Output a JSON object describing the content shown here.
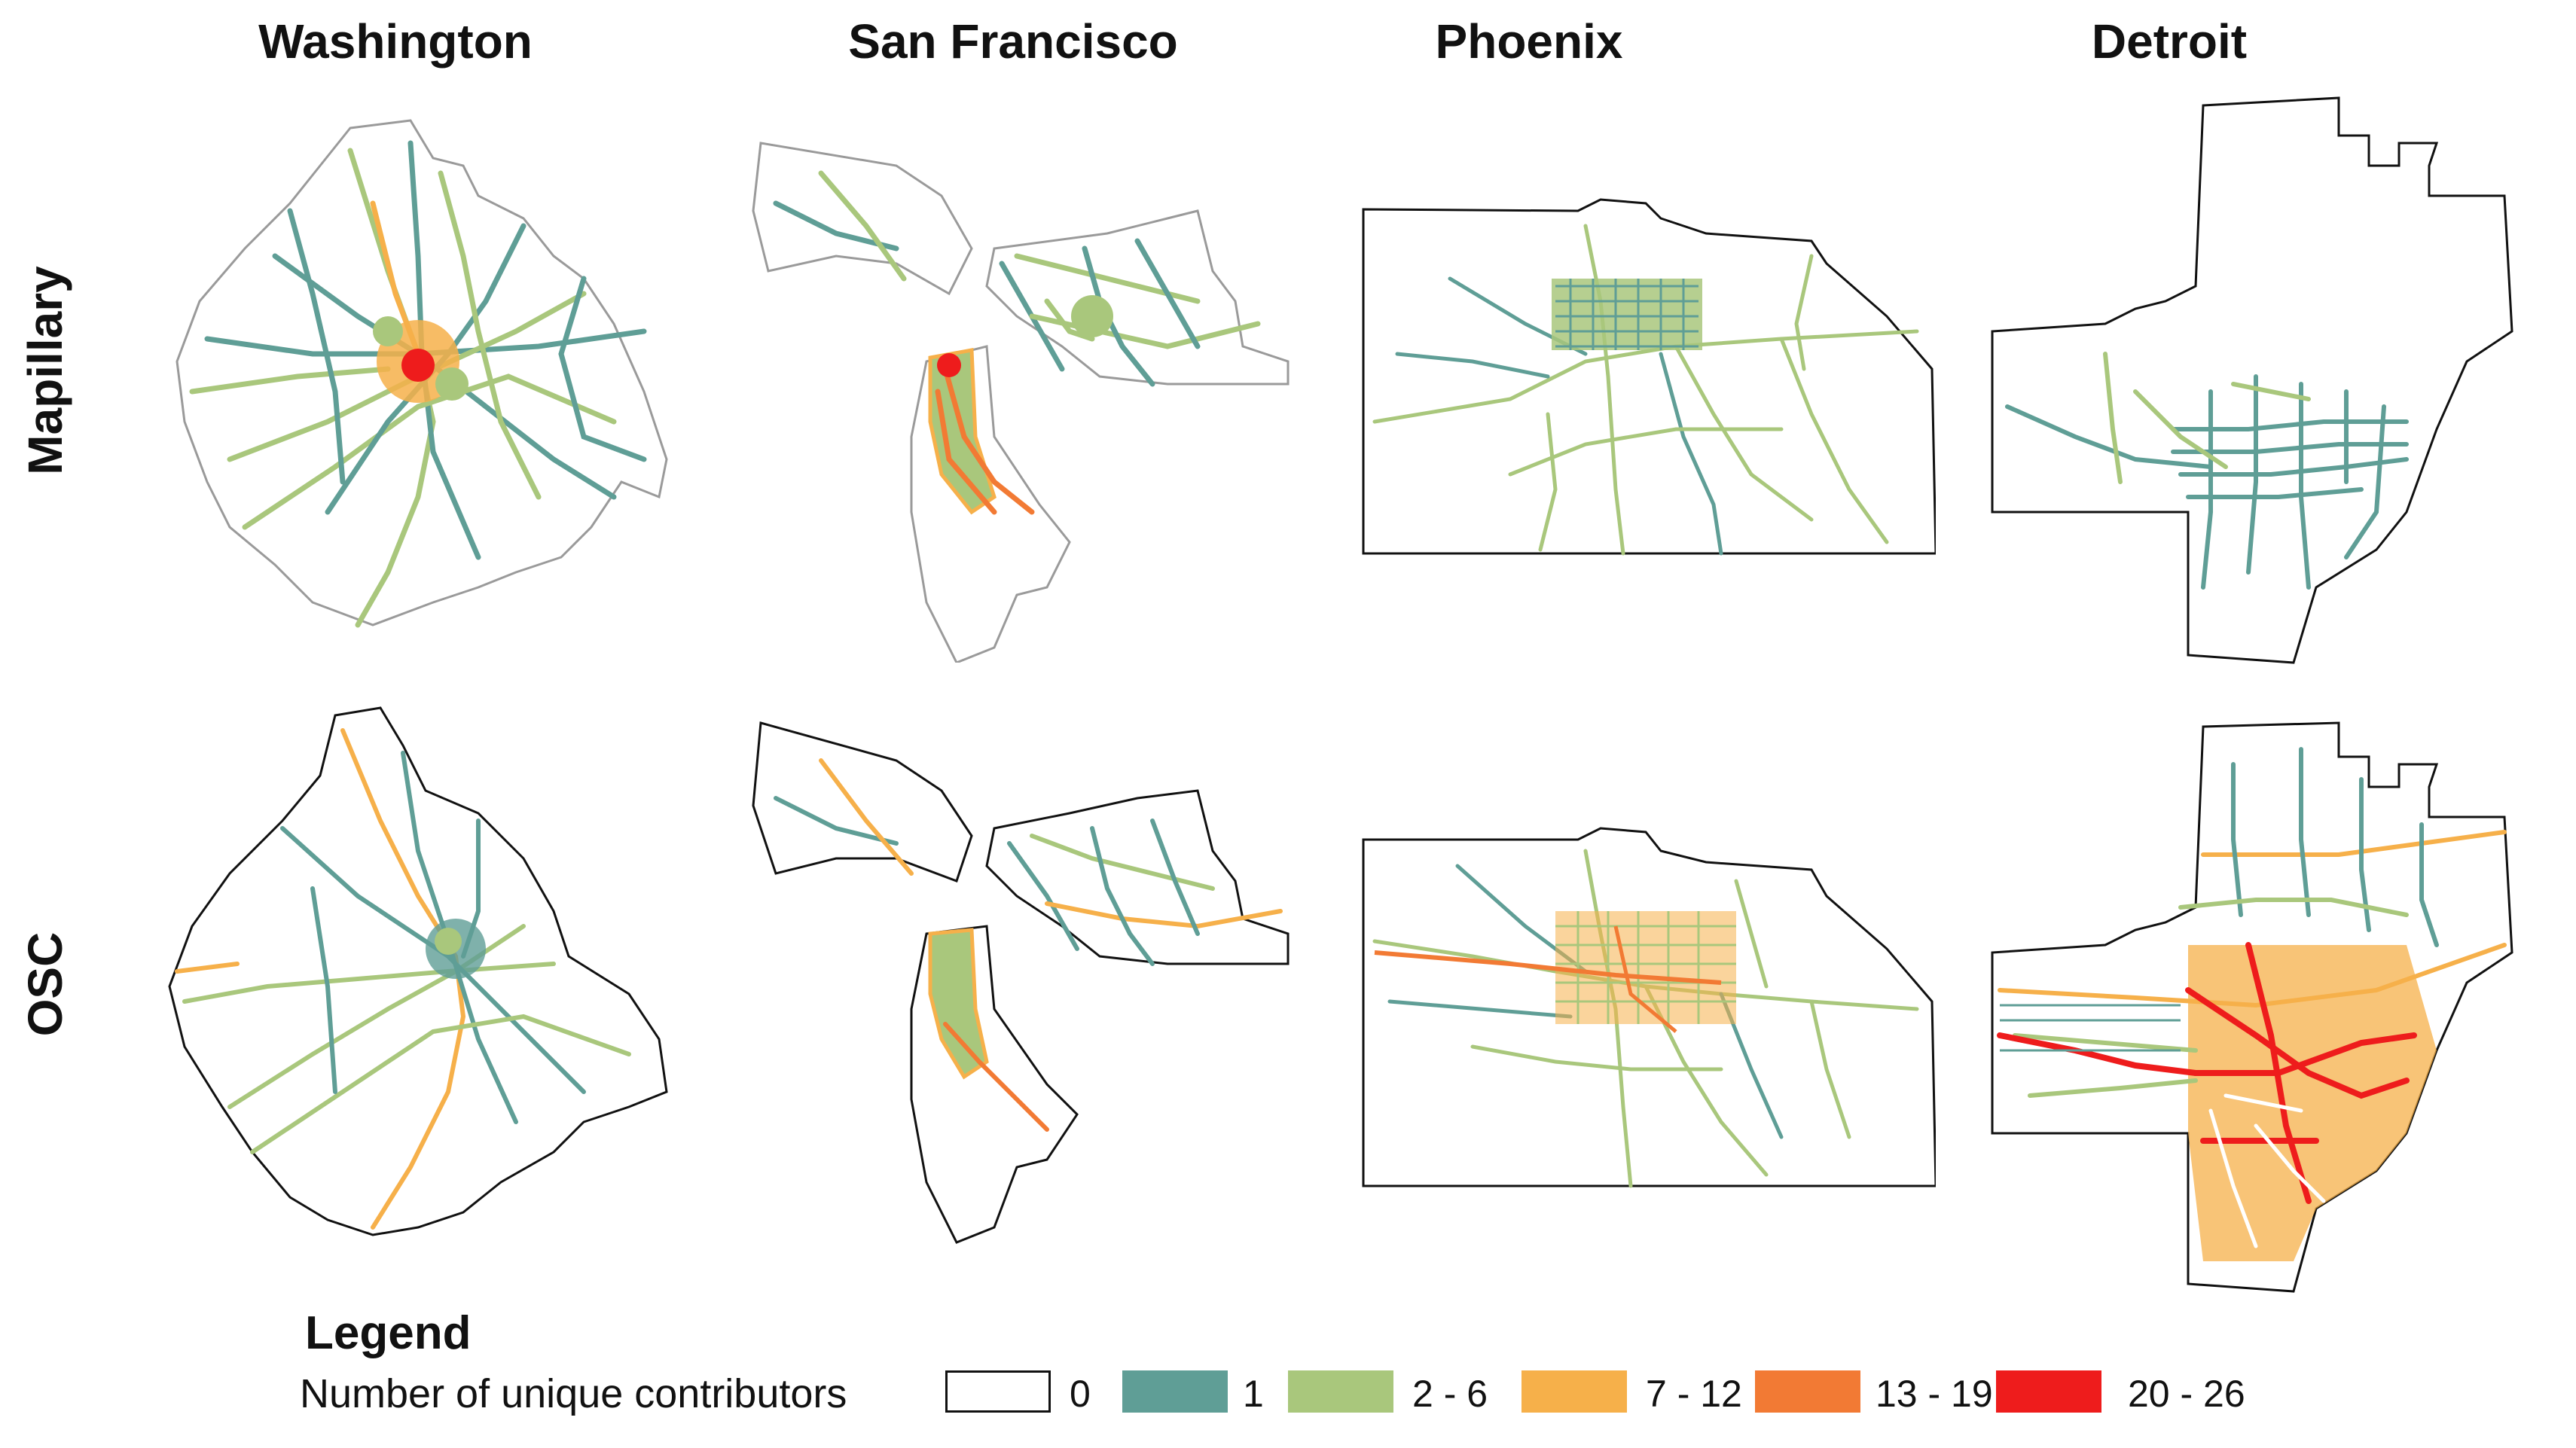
{
  "columns": [
    "Washington",
    "San Francisco",
    "Phoenix",
    "Detroit"
  ],
  "rows": [
    "Mapillary",
    "OSC"
  ],
  "legend": {
    "title": "Legend",
    "subtitle": "Number of unique contributors",
    "classes": [
      {
        "label": "0",
        "color": "#ffffff"
      },
      {
        "label": "1",
        "color": "#5f9e96"
      },
      {
        "label": "2 - 6",
        "color": "#a9c77c"
      },
      {
        "label": "7 - 12",
        "color": "#f6b04a"
      },
      {
        "label": "13 - 19",
        "color": "#f27a34"
      },
      {
        "label": "20 - 26",
        "color": "#ee1c1c"
      }
    ]
  }
}
